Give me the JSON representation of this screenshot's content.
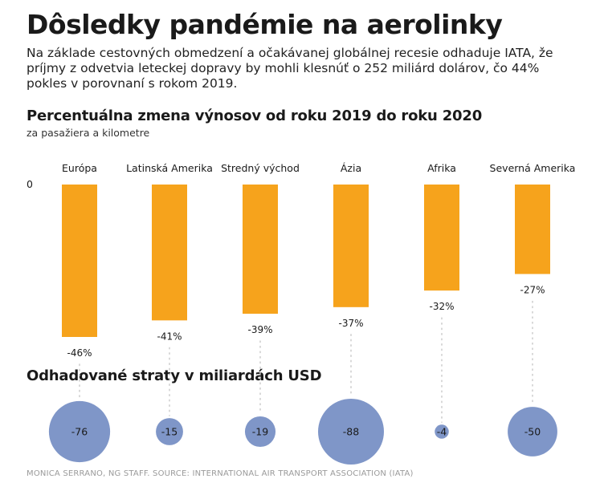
{
  "title": "Dôsledky pandémie na aerolinky",
  "subtitle": "Na základe cestovných obmedzení a očakávanej globálnej recesie odhaduje IATA, že príjmy z odvetvia leteckej dopravy by mohli klesnúť o 252 miliárd dolárov, čo 44% pokles v porovnaní s rokom 2019.",
  "credit": "MONICA SERRANO, NG STAFF. SOURCE: INTERNATIONAL AIR TRANSPORT ASSOCIATION (IATA)",
  "colors": {
    "bar": "#f6a31c",
    "bubble": "#7f96c8",
    "text": "#1a1a1a",
    "dots": "#c8c8c8"
  },
  "chart_data": [
    {
      "type": "bar",
      "title": "Percentuálna zmena výnosov od roku 2019 do roku 2020",
      "subtitle": "za pasažiera a kilometre",
      "categories": [
        "Európa",
        "Latinská Amerika",
        "Stredný východ",
        "Ázia",
        "Afrika",
        "Severná Amerika"
      ],
      "values": [
        -46,
        -41,
        -39,
        -37,
        -32,
        -27
      ],
      "value_labels": [
        "-46%",
        "-41%",
        "-39%",
        "-37%",
        "-32%",
        "-27%"
      ],
      "y_zero_label": "0",
      "ylim": [
        -46,
        0
      ],
      "grid": false
    },
    {
      "type": "bubble",
      "title": "Odhadované straty v miliardách USD",
      "categories": [
        "Európa",
        "Latinská Amerika",
        "Stredný východ",
        "Ázia",
        "Afrika",
        "Severná Amerika"
      ],
      "values": [
        -76,
        -15,
        -19,
        -88,
        -4,
        -50
      ],
      "value_labels": [
        "-76",
        "-15",
        "-19",
        "-88",
        "-4",
        "-50"
      ]
    }
  ]
}
